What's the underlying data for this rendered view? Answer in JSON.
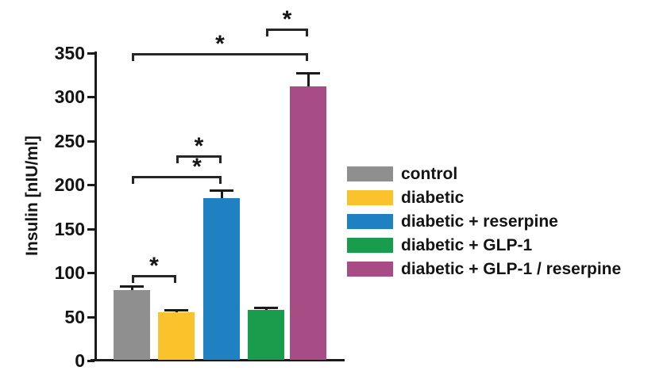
{
  "chart_data": {
    "type": "bar",
    "title": "",
    "xlabel": "",
    "ylabel": "Insulin [nIU/ml]",
    "ylim": [
      0,
      350
    ],
    "yticks": [
      0,
      50,
      100,
      150,
      200,
      250,
      300,
      350
    ],
    "grid": false,
    "legend_position": "right",
    "background": "#ffffff",
    "categories": [
      "control",
      "diabetic",
      "diabetic + reserpine",
      "diabetic + GLP-1",
      "diabetic + GLP-1 / reserpine"
    ],
    "values": [
      80,
      55,
      185,
      58,
      312
    ],
    "errors_upper": [
      6,
      4,
      10,
      3,
      16
    ],
    "colors": [
      "#8f8f8f",
      "#fbc32b",
      "#1f80c2",
      "#199c4b",
      "#a84c86"
    ],
    "significance": [
      {
        "groups": [
          0,
          1
        ],
        "between": [
          "control",
          "diabetic"
        ],
        "label": "*",
        "y_value": 97
      },
      {
        "groups": [
          1,
          2
        ],
        "between": [
          "diabetic",
          "diabetic + reserpine"
        ],
        "label": "*",
        "y_value": 234
      },
      {
        "groups": [
          0,
          2
        ],
        "between": [
          "control",
          "diabetic + reserpine"
        ],
        "label": "*",
        "y_value": 210
      },
      {
        "groups": [
          0,
          4
        ],
        "between": [
          "control",
          "diabetic + GLP-1 / reserpine"
        ],
        "label": "*",
        "y_value": 350
      },
      {
        "groups": [
          3,
          4
        ],
        "between": [
          "diabetic + GLP-1",
          "diabetic + GLP-1 / reserpine"
        ],
        "label": "*",
        "y_value": 378
      }
    ]
  }
}
